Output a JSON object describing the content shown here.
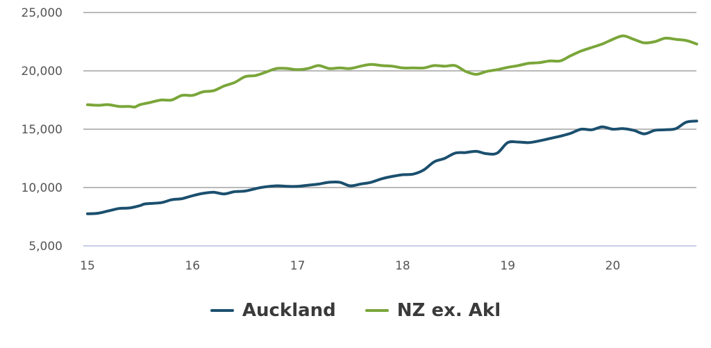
{
  "chart_data": {
    "type": "line",
    "xlim": [
      15,
      20.8
    ],
    "ylim": [
      5000,
      25000
    ],
    "x_ticks": [
      15,
      16,
      17,
      18,
      19,
      20
    ],
    "x_tick_labels": [
      "15",
      "16",
      "17",
      "18",
      "19",
      "20"
    ],
    "y_ticks": [
      5000,
      10000,
      15000,
      20000,
      25000
    ],
    "y_tick_labels": [
      "5,000",
      "10,000",
      "15,000",
      "20,000",
      "25,000"
    ],
    "grid": "horizontal",
    "legend_position": "bottom-center",
    "series": [
      {
        "name": "Auckland",
        "color": "#1b4f6e",
        "points": [
          [
            15.0,
            7750
          ],
          [
            15.1,
            7800
          ],
          [
            15.2,
            8000
          ],
          [
            15.3,
            8200
          ],
          [
            15.4,
            8250
          ],
          [
            15.5,
            8450
          ],
          [
            15.55,
            8600
          ],
          [
            15.7,
            8700
          ],
          [
            15.8,
            8950
          ],
          [
            15.9,
            9050
          ],
          [
            16.0,
            9300
          ],
          [
            16.1,
            9500
          ],
          [
            16.2,
            9600
          ],
          [
            16.3,
            9450
          ],
          [
            16.4,
            9650
          ],
          [
            16.5,
            9700
          ],
          [
            16.65,
            10000
          ],
          [
            16.8,
            10150
          ],
          [
            16.9,
            10100
          ],
          [
            17.0,
            10100
          ],
          [
            17.1,
            10200
          ],
          [
            17.2,
            10300
          ],
          [
            17.3,
            10450
          ],
          [
            17.4,
            10450
          ],
          [
            17.5,
            10150
          ],
          [
            17.6,
            10300
          ],
          [
            17.7,
            10450
          ],
          [
            17.8,
            10750
          ],
          [
            17.9,
            10950
          ],
          [
            18.0,
            11100
          ],
          [
            18.1,
            11150
          ],
          [
            18.2,
            11500
          ],
          [
            18.3,
            12200
          ],
          [
            18.4,
            12500
          ],
          [
            18.5,
            12950
          ],
          [
            18.6,
            13000
          ],
          [
            18.7,
            13100
          ],
          [
            18.8,
            12900
          ],
          [
            18.9,
            12950
          ],
          [
            19.0,
            13850
          ],
          [
            19.1,
            13900
          ],
          [
            19.2,
            13850
          ],
          [
            19.3,
            14000
          ],
          [
            19.4,
            14200
          ],
          [
            19.5,
            14400
          ],
          [
            19.6,
            14650
          ],
          [
            19.7,
            15000
          ],
          [
            19.8,
            14950
          ],
          [
            19.9,
            15200
          ],
          [
            20.0,
            15000
          ],
          [
            20.1,
            15050
          ],
          [
            20.2,
            14900
          ],
          [
            20.3,
            14600
          ],
          [
            20.4,
            14900
          ],
          [
            20.5,
            14950
          ],
          [
            20.6,
            15050
          ],
          [
            20.7,
            15600
          ],
          [
            20.8,
            15700
          ]
        ]
      },
      {
        "name": "NZ ex. Akl",
        "color": "#7aa63a",
        "points": [
          [
            15.0,
            17100
          ],
          [
            15.1,
            17050
          ],
          [
            15.2,
            17100
          ],
          [
            15.3,
            16950
          ],
          [
            15.4,
            16950
          ],
          [
            15.45,
            16900
          ],
          [
            15.5,
            17100
          ],
          [
            15.6,
            17300
          ],
          [
            15.7,
            17500
          ],
          [
            15.8,
            17500
          ],
          [
            15.9,
            17900
          ],
          [
            16.0,
            17900
          ],
          [
            16.1,
            18200
          ],
          [
            16.2,
            18300
          ],
          [
            16.3,
            18700
          ],
          [
            16.4,
            19000
          ],
          [
            16.5,
            19500
          ],
          [
            16.6,
            19600
          ],
          [
            16.7,
            19900
          ],
          [
            16.8,
            20200
          ],
          [
            16.9,
            20200
          ],
          [
            17.0,
            20100
          ],
          [
            17.1,
            20200
          ],
          [
            17.2,
            20450
          ],
          [
            17.3,
            20200
          ],
          [
            17.4,
            20250
          ],
          [
            17.5,
            20200
          ],
          [
            17.6,
            20400
          ],
          [
            17.7,
            20550
          ],
          [
            17.8,
            20450
          ],
          [
            17.9,
            20400
          ],
          [
            18.0,
            20250
          ],
          [
            18.1,
            20250
          ],
          [
            18.2,
            20250
          ],
          [
            18.3,
            20450
          ],
          [
            18.4,
            20400
          ],
          [
            18.5,
            20450
          ],
          [
            18.6,
            19950
          ],
          [
            18.7,
            19700
          ],
          [
            18.8,
            19950
          ],
          [
            18.9,
            20100
          ],
          [
            19.0,
            20300
          ],
          [
            19.1,
            20450
          ],
          [
            19.2,
            20650
          ],
          [
            19.3,
            20700
          ],
          [
            19.4,
            20850
          ],
          [
            19.5,
            20850
          ],
          [
            19.6,
            21300
          ],
          [
            19.7,
            21700
          ],
          [
            19.8,
            22000
          ],
          [
            19.9,
            22300
          ],
          [
            20.0,
            22700
          ],
          [
            20.1,
            23000
          ],
          [
            20.2,
            22700
          ],
          [
            20.3,
            22400
          ],
          [
            20.4,
            22500
          ],
          [
            20.5,
            22800
          ],
          [
            20.6,
            22700
          ],
          [
            20.7,
            22600
          ],
          [
            20.8,
            22300
          ]
        ]
      }
    ]
  }
}
